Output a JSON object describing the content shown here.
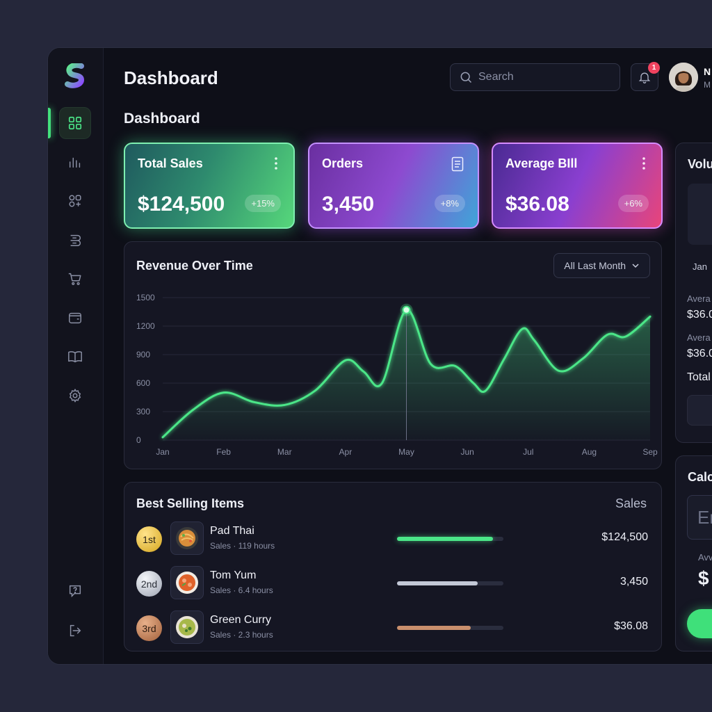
{
  "header": {
    "title": "Dashboard",
    "section_title": "Dashboard",
    "search_placeholder": "Search",
    "notification_count": "1",
    "user_name": "N",
    "user_role": "M"
  },
  "sidebar": {
    "items": [
      {
        "name": "dashboard",
        "icon": "grid-icon",
        "active": true
      },
      {
        "name": "analytics",
        "icon": "bar-chart-icon"
      },
      {
        "name": "apps",
        "icon": "shapes-icon"
      },
      {
        "name": "orders",
        "icon": "receipt-icon"
      },
      {
        "name": "cart",
        "icon": "cart-icon"
      },
      {
        "name": "wallet",
        "icon": "wallet-icon"
      },
      {
        "name": "menu-book",
        "icon": "book-icon"
      },
      {
        "name": "settings",
        "icon": "gear-icon"
      }
    ],
    "bottom": [
      {
        "name": "help",
        "icon": "help-icon"
      },
      {
        "name": "logout",
        "icon": "logout-icon"
      }
    ],
    "accent": "#43e07c"
  },
  "cards": {
    "sales": {
      "title": "Total Sales",
      "value": "$124,500",
      "change": "+15%"
    },
    "orders": {
      "title": "Orders",
      "value": "3,450",
      "change": "+8%"
    },
    "bill": {
      "title": "Average BIll",
      "value": "$36.08",
      "change": "+6%"
    }
  },
  "revenue": {
    "title": "Revenue Over Time",
    "filter": "All Last Month"
  },
  "chart_data": {
    "type": "line",
    "x": [
      "Jan",
      "Feb",
      "Mar",
      "Apr",
      "May",
      "Jun",
      "Jul",
      "Aug",
      "Sep"
    ],
    "series": [
      {
        "values": [
          [
            0,
            30
          ],
          [
            0.5,
            320
          ],
          [
            1,
            500
          ],
          [
            1.5,
            400
          ],
          [
            2,
            370
          ],
          [
            2.5,
            520
          ],
          [
            3,
            840
          ],
          [
            3.3,
            720
          ],
          [
            3.6,
            600
          ],
          [
            4,
            1370
          ],
          [
            4.4,
            800
          ],
          [
            4.8,
            780
          ],
          [
            5.1,
            600
          ],
          [
            5.3,
            520
          ],
          [
            5.6,
            850
          ],
          [
            5.9,
            1170
          ],
          [
            6.1,
            1050
          ],
          [
            6.5,
            730
          ],
          [
            6.9,
            860
          ],
          [
            7.3,
            1110
          ],
          [
            7.6,
            1090
          ],
          [
            8,
            1300
          ]
        ]
      }
    ],
    "ylim": [
      0,
      1500
    ],
    "yticks": [
      "1500",
      "1200",
      "900",
      "600",
      "300",
      "0"
    ],
    "highlight_index": 4,
    "color": "#4be688",
    "grid": true
  },
  "best_selling": {
    "title": "Best Selling Items",
    "column": "Sales",
    "items": [
      {
        "rank": "1st",
        "name": "Pad Thai",
        "sub": "Sales · 119 hours",
        "value": "$124,500",
        "fill": 0.9,
        "color": "#4be688",
        "icon": "pad-thai-icon"
      },
      {
        "rank": "2nd",
        "name": "Tom Yum",
        "sub": "Sales · 6.4 hours",
        "value": "3,450",
        "fill": 0.76,
        "color": "#c3c8d6",
        "icon": "tom-yum-icon"
      },
      {
        "rank": "3rd",
        "name": "Green Curry",
        "sub": "Sales · 2.3 hours",
        "value": "$36.08",
        "fill": 0.69,
        "color": "#c98f6c",
        "icon": "green-curry-icon"
      }
    ]
  },
  "volume_panel": {
    "title": "Volu",
    "month": "Jan",
    "avg1_label": "Avera",
    "avg1_value": "$36.0",
    "avg2_label": "Avera",
    "avg2_value": "$36.0",
    "total_label": "Total"
  },
  "calc_panel": {
    "title": "Calc",
    "input_placeholder": "Er",
    "avg_label": "Avv",
    "avg_value": "$"
  }
}
